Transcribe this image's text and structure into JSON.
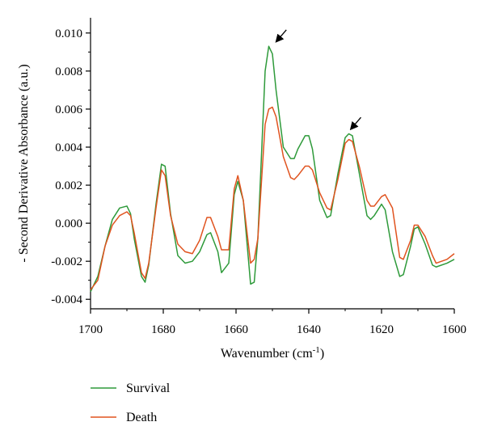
{
  "chart_data": {
    "type": "line",
    "xlabel": "Wavenumber (cm",
    "xlabel_sup": "-1",
    "xlabel_end": ")",
    "ylabel": "- Second Derivative Absorbance (a.u.)",
    "xlim": [
      1700,
      1600
    ],
    "ylim": [
      -0.0045,
      0.0108
    ],
    "x_reversed": true,
    "grid": false,
    "legend_position": "bottom-left",
    "x_ticks": [
      "1700",
      "1680",
      "1660",
      "1640",
      "1620",
      "1600"
    ],
    "x_tick_values": [
      1700,
      1680,
      1660,
      1640,
      1620,
      1600
    ],
    "y_ticks": [
      "-0.004",
      "-0.002",
      "0.000",
      "0.002",
      "0.004",
      "0.006",
      "0.008",
      "0.010"
    ],
    "y_tick_values": [
      -0.004,
      -0.002,
      0.0,
      0.002,
      0.004,
      0.006,
      0.008,
      0.01
    ],
    "annotations": [
      {
        "type": "arrow",
        "x": 1649.5,
        "y": 0.0094
      },
      {
        "type": "arrow",
        "x": 1629,
        "y": 0.0048
      }
    ],
    "series": [
      {
        "name": "Survival",
        "color": "#2e9a3a",
        "x": [
          1700,
          1698,
          1696,
          1694,
          1692,
          1690,
          1689,
          1688,
          1686,
          1685,
          1684,
          1682,
          1680.5,
          1679.5,
          1678,
          1676,
          1674,
          1672,
          1670,
          1668,
          1667,
          1665,
          1664,
          1662,
          1660.5,
          1659.5,
          1658,
          1656,
          1655,
          1654,
          1652,
          1651,
          1650,
          1649,
          1647,
          1645,
          1644,
          1643,
          1641,
          1640,
          1639,
          1637,
          1635,
          1634,
          1632,
          1630,
          1629,
          1628,
          1626,
          1624,
          1623,
          1622,
          1620,
          1619,
          1617,
          1615,
          1614,
          1612,
          1611,
          1610,
          1608,
          1606,
          1605,
          1602,
          1600
        ],
        "y": [
          -0.0036,
          -0.0028,
          -0.0012,
          0.0002,
          0.0008,
          0.0009,
          0.0005,
          -0.0008,
          -0.0028,
          -0.0031,
          -0.0022,
          0.001,
          0.0031,
          0.003,
          0.0005,
          -0.0017,
          -0.0021,
          -0.002,
          -0.0015,
          -0.0006,
          -0.0005,
          -0.0015,
          -0.0026,
          -0.0021,
          0.0015,
          0.0022,
          0.0012,
          -0.0032,
          -0.0031,
          -0.0008,
          0.008,
          0.0093,
          0.0089,
          0.007,
          0.004,
          0.0034,
          0.0034,
          0.0039,
          0.0046,
          0.0046,
          0.0039,
          0.0012,
          0.0003,
          0.0004,
          0.0026,
          0.0045,
          0.0047,
          0.0046,
          0.0025,
          0.0004,
          0.0002,
          0.0004,
          0.001,
          0.0007,
          -0.0015,
          -0.0028,
          -0.0027,
          -0.0012,
          -0.0003,
          -0.0002,
          -0.0011,
          -0.0022,
          -0.0023,
          -0.0021,
          -0.0019
        ]
      },
      {
        "name": "Death",
        "color": "#e0531f",
        "x": [
          1700,
          1698,
          1696,
          1694,
          1692,
          1690,
          1689,
          1688,
          1686,
          1685,
          1684,
          1682,
          1680.5,
          1679.5,
          1678,
          1676,
          1674,
          1672,
          1670,
          1668,
          1667,
          1665,
          1664,
          1662,
          1660.5,
          1659.5,
          1658,
          1656,
          1655,
          1654,
          1652,
          1651,
          1650,
          1649,
          1647,
          1645,
          1644,
          1643,
          1641,
          1640,
          1639,
          1637,
          1635,
          1634,
          1632,
          1630,
          1629,
          1628,
          1626,
          1624,
          1623,
          1622,
          1620,
          1619,
          1617,
          1615,
          1614,
          1612,
          1611,
          1610,
          1608,
          1606,
          1605,
          1602,
          1600
        ],
        "y": [
          -0.0035,
          -0.003,
          -0.0012,
          -0.0001,
          0.0004,
          0.0006,
          0.0004,
          -0.0005,
          -0.0026,
          -0.0029,
          -0.0021,
          0.0008,
          0.0028,
          0.0025,
          0.0004,
          -0.0011,
          -0.0015,
          -0.0016,
          -0.0009,
          0.0003,
          0.0003,
          -0.0007,
          -0.0014,
          -0.0014,
          0.0018,
          0.0025,
          0.0012,
          -0.0021,
          -0.0019,
          -0.0008,
          0.0052,
          0.006,
          0.0061,
          0.0056,
          0.0035,
          0.0024,
          0.0023,
          0.0025,
          0.003,
          0.003,
          0.0028,
          0.0016,
          0.0008,
          0.0007,
          0.0023,
          0.0042,
          0.0044,
          0.0043,
          0.0029,
          0.0012,
          0.0009,
          0.0009,
          0.0014,
          0.0015,
          0.0008,
          -0.0018,
          -0.0019,
          -0.0009,
          -0.0001,
          -0.0001,
          -0.0007,
          -0.0017,
          -0.0021,
          -0.0019,
          -0.0016
        ]
      }
    ]
  }
}
